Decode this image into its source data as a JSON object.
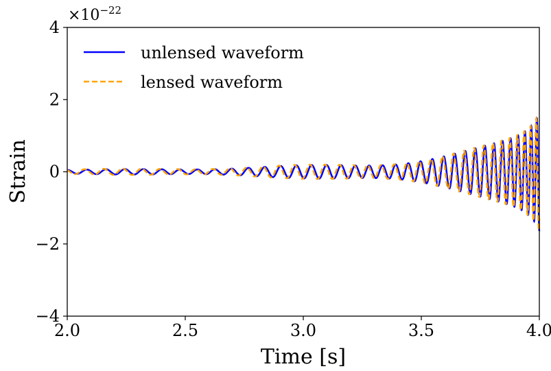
{
  "chart_data": {
    "type": "line",
    "xlabel": "Time [s]",
    "ylabel": "Strain",
    "xlim": [
      2.0,
      4.0
    ],
    "ylim": [
      -4,
      4
    ],
    "x_ticks": [
      2.0,
      2.5,
      3.0,
      3.5,
      4.0
    ],
    "x_tick_labels": [
      "2.0",
      "2.5",
      "3.0",
      "3.5",
      "4.0"
    ],
    "y_ticks": [
      -4,
      -2,
      0,
      2,
      4
    ],
    "y_tick_labels": [
      "−4",
      "−2",
      "0",
      "2",
      "4"
    ],
    "y_offset_text": {
      "base": "×10",
      "exponent": "−22"
    },
    "grid": false,
    "legend_position": "upper-left",
    "series": [
      {
        "name": "unlensed waveform",
        "color": "#0000ff",
        "style": "solid",
        "f0": 12,
        "f1": 67,
        "tc": 4.05,
        "a0": 0.05,
        "a1": 3.2,
        "phi": 0.0,
        "x_start": 2.0,
        "x_end": 4.0
      },
      {
        "name": "lensed waveform",
        "color": "#ffa500",
        "style": "dashed",
        "f0": 12,
        "f1": 68,
        "tc": 4.05,
        "a0": 0.06,
        "a1": 3.3,
        "phi": 0.7,
        "x_start": 2.0,
        "x_end": 4.0
      }
    ]
  }
}
